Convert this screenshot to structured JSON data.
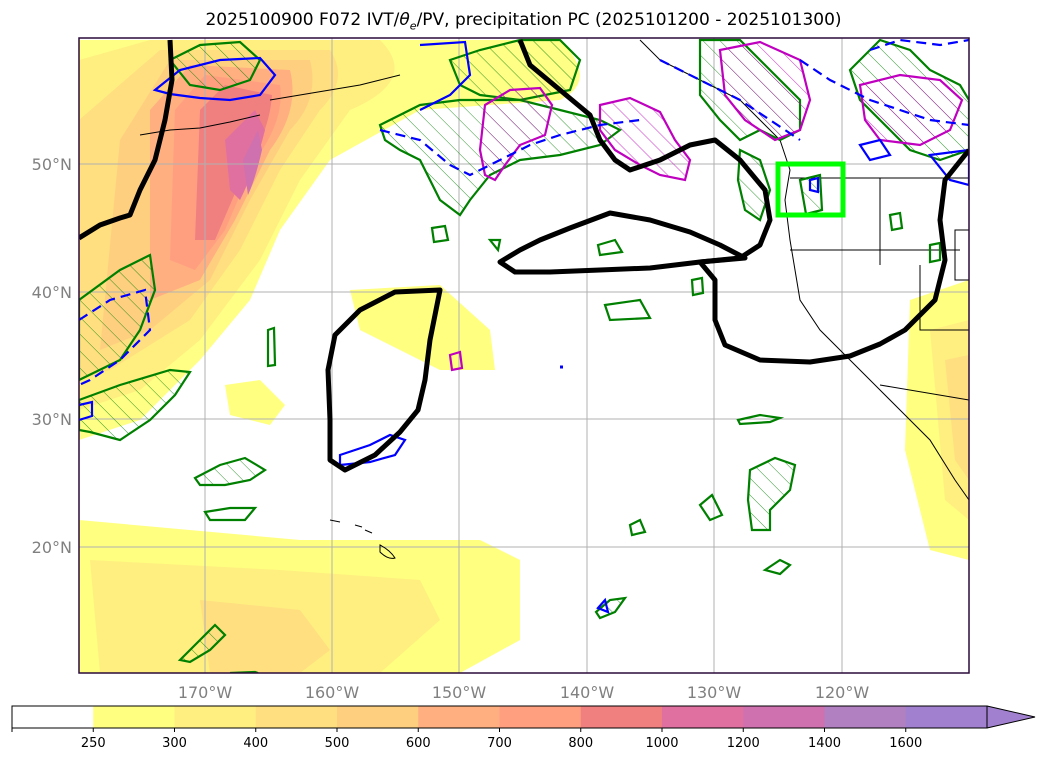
{
  "title": {
    "prefix": "2025100900 F072 IVT/",
    "theta_sym": "θ",
    "theta_sub": "e",
    "suffix": "/PV, precipitation PC (2025101200 - 2025101300)"
  },
  "map": {
    "lat_labels": [
      "50°N",
      "40°N",
      "30°N",
      "20°N"
    ],
    "lon_labels": [
      "170°W",
      "160°W",
      "150°W",
      "140°W",
      "130°W",
      "120°W"
    ],
    "highlight_box_color": "#00ff00",
    "contour_colors": {
      "theta_e": "#000000",
      "precip_positive": "#008000",
      "pv_positive": "#0000ff",
      "pv_other": "#bf00bf"
    }
  },
  "colorbar": {
    "ticks": [
      "250",
      "300",
      "400",
      "500",
      "600",
      "700",
      "800",
      "1000",
      "1200",
      "1400",
      "1600"
    ],
    "colors": [
      "#ffffff",
      "#ffff80",
      "#ffef80",
      "#ffdf80",
      "#ffcf80",
      "#ffaf80",
      "#ff9f80",
      "#f08080",
      "#e0709f",
      "#cf70af",
      "#b080c0",
      "#a080cf"
    ]
  }
}
